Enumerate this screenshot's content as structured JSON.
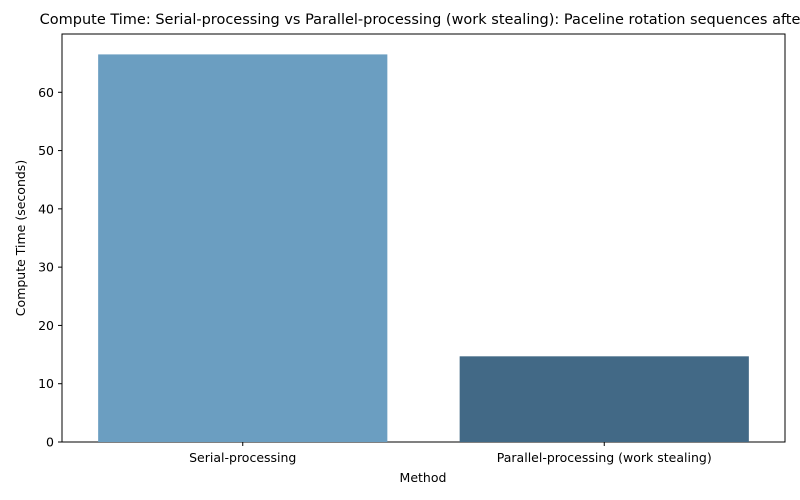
{
  "chart_data": {
    "type": "bar",
    "title": "Compute Time: Serial-processing vs Parallel-processing (work stealing): Paceline rotation sequences after",
    "xlabel": "Method",
    "ylabel": "Compute Time (seconds)",
    "categories": [
      "Serial-processing",
      "Parallel-processing (work stealing)"
    ],
    "values": [
      66.5,
      14.7
    ],
    "colors": [
      "#6b9ec1",
      "#426986"
    ],
    "ylim": [
      0,
      70
    ],
    "yticks": [
      0,
      10,
      20,
      30,
      40,
      50,
      60
    ],
    "grid": false,
    "legend": "none"
  }
}
